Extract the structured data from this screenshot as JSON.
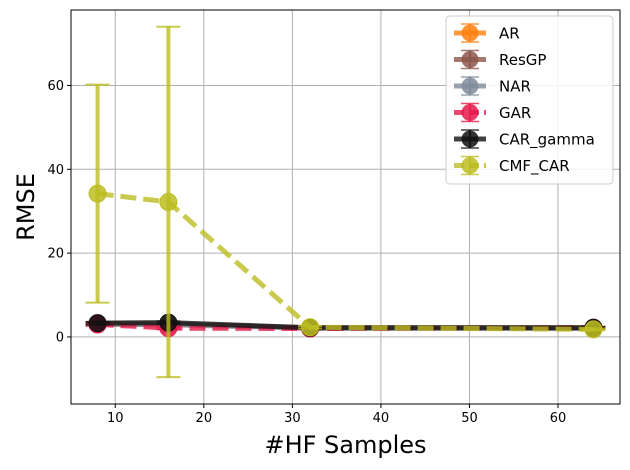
{
  "chart_data": {
    "type": "line",
    "xlabel": "#HF Samples",
    "ylabel": "RMSE",
    "xlim": [
      5,
      67
    ],
    "ylim": [
      -16,
      78
    ],
    "x_ticks": [
      10,
      20,
      30,
      40,
      50,
      60
    ],
    "y_ticks": [
      0,
      20,
      40,
      60
    ],
    "grid": true,
    "legend_position": "top-right",
    "x": [
      8,
      16,
      32,
      64
    ],
    "series": [
      {
        "name": "AR",
        "values": [
          3.0,
          3.0,
          2.2,
          2.2
        ],
        "err": [
          0.3,
          0.3,
          0.2,
          0.2
        ],
        "color": "#ff7f0e",
        "dashed": false
      },
      {
        "name": "ResGP",
        "values": [
          3.2,
          3.1,
          2.2,
          2.1
        ],
        "err": [
          0.3,
          0.3,
          0.2,
          0.2
        ],
        "color": "#8c564b",
        "dashed": false
      },
      {
        "name": "NAR",
        "values": [
          3.0,
          2.9,
          2.1,
          2.0
        ],
        "err": [
          0.3,
          0.3,
          0.2,
          0.2
        ],
        "color": "#7f8c9a",
        "dashed": false
      },
      {
        "name": "GAR",
        "values": [
          3.0,
          2.1,
          2.0,
          2.2
        ],
        "err": [
          0.3,
          0.3,
          0.2,
          0.2
        ],
        "color": "#e6194b",
        "dashed": true
      },
      {
        "name": "CAR_gamma",
        "values": [
          3.3,
          3.4,
          2.2,
          2.2
        ],
        "err": [
          0.3,
          0.3,
          0.2,
          0.2
        ],
        "color": "#111111",
        "dashed": false
      },
      {
        "name": "CMF_CAR",
        "values": [
          34.2,
          32.2,
          2.3,
          1.8
        ],
        "err": [
          26.0,
          41.8,
          0.3,
          0.2
        ],
        "color": "#bcbd22",
        "dashed": true
      }
    ]
  }
}
